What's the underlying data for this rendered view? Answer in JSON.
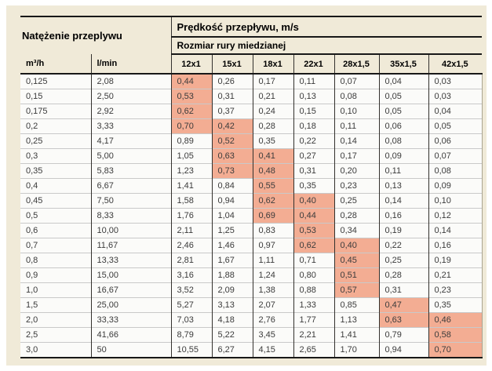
{
  "colors": {
    "panel_bg": "#f0ead8",
    "highlight": "#f3ad93",
    "row_bg": "#fbfbf9",
    "heavy_line": "#181818",
    "column_line": "#33312d",
    "row_line": "#c9c9c9"
  },
  "table": {
    "flow_group_label": "Natężenie przeplywu",
    "velocity_group_label": "Prędkość przepływu, m/s",
    "pipe_group_label": "Rozmiar rury miedzianej",
    "flow_unit_headers": [
      "m³/h",
      "l/min"
    ],
    "pipe_size_headers": [
      "12x1",
      "15x1",
      "18x1",
      "22x1",
      "28x1,5",
      "35x1,5",
      "42x1,5"
    ],
    "rows": [
      {
        "m3h": "0,125",
        "lmin": "2,08",
        "velocities": [
          "0,44",
          "0,26",
          "0,17",
          "0,11",
          "0,07",
          "0,04",
          "0,03"
        ],
        "highlighted": [
          0
        ]
      },
      {
        "m3h": "0,15",
        "lmin": "2,50",
        "velocities": [
          "0,53",
          "0,31",
          "0,21",
          "0,13",
          "0,08",
          "0,05",
          "0,03"
        ],
        "highlighted": [
          0
        ]
      },
      {
        "m3h": "0,175",
        "lmin": "2,92",
        "velocities": [
          "0,62",
          "0,37",
          "0,24",
          "0,15",
          "0,10",
          "0,05",
          "0,04"
        ],
        "highlighted": [
          0
        ]
      },
      {
        "m3h": "0,2",
        "lmin": "3,33",
        "velocities": [
          "0,70",
          "0,42",
          "0,28",
          "0,18",
          "0,11",
          "0,06",
          "0,05"
        ],
        "highlighted": [
          0,
          1
        ]
      },
      {
        "m3h": "0,25",
        "lmin": "4,17",
        "velocities": [
          "0,89",
          "0,52",
          "0,35",
          "0,22",
          "0,14",
          "0,08",
          "0,06"
        ],
        "highlighted": [
          1
        ]
      },
      {
        "m3h": "0,3",
        "lmin": "5,00",
        "velocities": [
          "1,05",
          "0,63",
          "0,41",
          "0,27",
          "0,17",
          "0,09",
          "0,07"
        ],
        "highlighted": [
          1,
          2
        ]
      },
      {
        "m3h": "0,35",
        "lmin": "5,83",
        "velocities": [
          "1,23",
          "0,73",
          "0,48",
          "0,31",
          "0,20",
          "0,11",
          "0,08"
        ],
        "highlighted": [
          1,
          2
        ]
      },
      {
        "m3h": "0,4",
        "lmin": "6,67",
        "velocities": [
          "1,41",
          "0,84",
          "0,55",
          "0,35",
          "0,23",
          "0,13",
          "0,09"
        ],
        "highlighted": [
          2
        ]
      },
      {
        "m3h": "0,45",
        "lmin": "7,50",
        "velocities": [
          "1,58",
          "0,94",
          "0,62",
          "0,40",
          "0,25",
          "0,14",
          "0,10"
        ],
        "highlighted": [
          2,
          3
        ]
      },
      {
        "m3h": "0,5",
        "lmin": "8,33",
        "velocities": [
          "1,76",
          "1,04",
          "0,69",
          "0,44",
          "0,28",
          "0,16",
          "0,12"
        ],
        "highlighted": [
          2,
          3
        ]
      },
      {
        "m3h": "0,6",
        "lmin": "10,00",
        "velocities": [
          "2,11",
          "1,25",
          "0,83",
          "0,53",
          "0,34",
          "0,19",
          "0,14"
        ],
        "highlighted": [
          3
        ]
      },
      {
        "m3h": "0,7",
        "lmin": "11,67",
        "velocities": [
          "2,46",
          "1,46",
          "0,97",
          "0,62",
          "0,40",
          "0,22",
          "0,16"
        ],
        "highlighted": [
          3,
          4
        ]
      },
      {
        "m3h": "0,8",
        "lmin": "13,33",
        "velocities": [
          "2,81",
          "1,67",
          "1,11",
          "0,71",
          "0,45",
          "0,25",
          "0,19"
        ],
        "highlighted": [
          4
        ]
      },
      {
        "m3h": "0,9",
        "lmin": "15,00",
        "velocities": [
          "3,16",
          "1,88",
          "1,24",
          "0,80",
          "0,51",
          "0,28",
          "0,21"
        ],
        "highlighted": [
          4
        ]
      },
      {
        "m3h": "1,0",
        "lmin": "16,67",
        "velocities": [
          "3,52",
          "2,09",
          "1,38",
          "0,88",
          "0,57",
          "0,31",
          "0,23"
        ],
        "highlighted": [
          4
        ]
      },
      {
        "m3h": "1,5",
        "lmin": "25,00",
        "velocities": [
          "5,27",
          "3,13",
          "2,07",
          "1,33",
          "0,85",
          "0,47",
          "0,35"
        ],
        "highlighted": [
          5
        ]
      },
      {
        "m3h": "2,0",
        "lmin": "33,33",
        "velocities": [
          "7,03",
          "4,18",
          "2,76",
          "1,77",
          "1,13",
          "0,63",
          "0,46"
        ],
        "highlighted": [
          5,
          6
        ]
      },
      {
        "m3h": "2,5",
        "lmin": "41,66",
        "velocities": [
          "8,79",
          "5,22",
          "3,45",
          "2,21",
          "1,41",
          "0,79",
          "0,58"
        ],
        "highlighted": [
          6
        ]
      },
      {
        "m3h": "3,0",
        "lmin": "50",
        "velocities": [
          "10,55",
          "6,27",
          "4,15",
          "2,65",
          "1,70",
          "0,94",
          "0,70"
        ],
        "highlighted": [
          6
        ]
      }
    ]
  }
}
